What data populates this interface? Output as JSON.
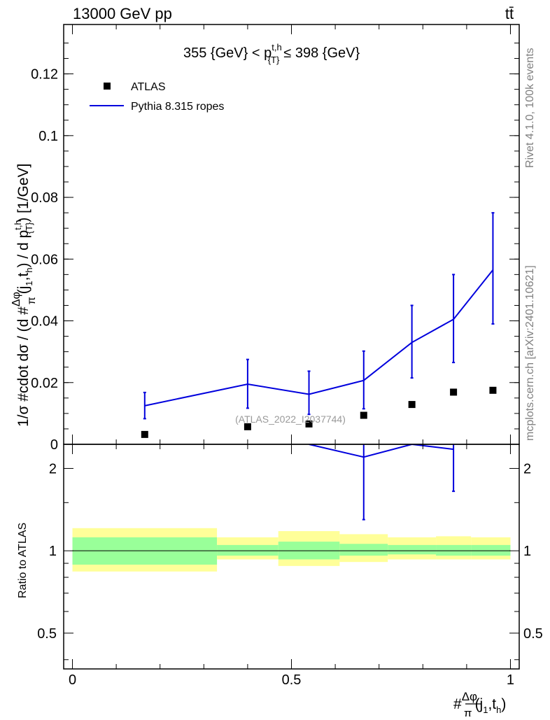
{
  "header": {
    "energy_label": "13000 GeV pp",
    "process_label": "tt̄",
    "side_label_rivet": "Rivet 4.1.0,  100k events",
    "side_label_source": "mcplots.cern.ch [arXiv:2401.10621]",
    "watermark": "(ATLAS_2022_I2037744)"
  },
  "main_plot": {
    "title_prefix": "355 {GeV} < p",
    "title_sup": "t,h",
    "title_sub": "{T}",
    "title_suffix": "≤ 398 {GeV}",
    "ylabel": "1/σ #cdot dσ / (d #Δφ/π(j₁,tₕ) / d p_{T}^{t,h}) [1/GeV]",
    "ylabel_parts": {
      "a": "1/σ #cdot dσ / (d #",
      "frac_num": "Δφ",
      "frac_den": "π",
      "b": "(j",
      "b_sub1": "1",
      "c": ",t",
      "c_sub": "h",
      "d": ") / d p",
      "d_sup": "t,h",
      "d_sub": "{T}",
      "e": ") [1/GeV]"
    },
    "yticks": [
      "0",
      "0.02",
      "0.04",
      "0.06",
      "0.08",
      "0.1",
      "0.12"
    ],
    "legend": [
      {
        "label": "ATLAS",
        "marker": "square",
        "color": "#000000"
      },
      {
        "label": "Pythia 8.315 ropes",
        "marker": "line",
        "color": "#0000dd"
      }
    ]
  },
  "ratio_plot": {
    "ylabel": "Ratio to ATLAS",
    "yticks": [
      "0.5",
      "1",
      "2"
    ]
  },
  "xaxis": {
    "label_hash": "#",
    "label_frac_num": "Δφ",
    "label_frac_den": "π",
    "label_rest_a": "(j",
    "label_sub1": "1",
    "label_rest_b": ",t",
    "label_subh": "h",
    "label_rest_c": ")",
    "ticks": [
      "0",
      "0.5",
      "1"
    ]
  },
  "colors": {
    "mc": "#0000dd",
    "data": "#000000",
    "band_inner": "#99ff99",
    "band_outer": "#ffff99"
  },
  "chart_data": {
    "type": "line",
    "xlabel": "#Δφ/π(j1,th)",
    "ylabel": "1/σ dσ/(d Δφ/π d pT) [1/GeV]",
    "xlim": [
      -0.02,
      1.02
    ],
    "ylim": [
      0,
      0.136
    ],
    "ratio_ylim": [
      0.37,
      2.45
    ],
    "data": {
      "name": "ATLAS",
      "x": [
        0.165,
        0.4,
        0.54,
        0.665,
        0.775,
        0.87,
        0.96
      ],
      "y": [
        0.0032,
        0.0057,
        0.0066,
        0.0094,
        0.0129,
        0.0169,
        0.0175
      ]
    },
    "mc": {
      "name": "Pythia 8.315 ropes",
      "x": [
        0.165,
        0.4,
        0.54,
        0.665,
        0.775,
        0.87,
        0.96
      ],
      "y": [
        0.0125,
        0.0195,
        0.0162,
        0.0207,
        0.033,
        0.0405,
        0.0565
      ],
      "yerr_low": [
        0.0042,
        0.0078,
        0.0065,
        0.0092,
        0.0115,
        0.014,
        0.0175
      ],
      "yerr_high": [
        0.0043,
        0.008,
        0.0075,
        0.0095,
        0.012,
        0.0145,
        0.0185
      ]
    },
    "ratio": {
      "mc_x": [
        0.54,
        0.665,
        0.775,
        0.87
      ],
      "mc_y": [
        2.45,
        2.2,
        2.45,
        2.35
      ],
      "mc_err_low": [
        0,
        0.9,
        0,
        0.7
      ],
      "mc_err_high": [
        0,
        0.25,
        0,
        0.1
      ]
    },
    "bands": [
      {
        "xlo": 0.0,
        "xhi": 0.33,
        "inner": [
          0.89,
          1.12
        ],
        "outer": [
          0.84,
          1.21
        ]
      },
      {
        "xlo": 0.33,
        "xhi": 0.47,
        "inner": [
          0.96,
          1.05
        ],
        "outer": [
          0.93,
          1.12
        ]
      },
      {
        "xlo": 0.47,
        "xhi": 0.61,
        "inner": [
          0.93,
          1.08
        ],
        "outer": [
          0.88,
          1.18
        ]
      },
      {
        "xlo": 0.61,
        "xhi": 0.72,
        "inner": [
          0.96,
          1.06
        ],
        "outer": [
          0.91,
          1.15
        ]
      },
      {
        "xlo": 0.72,
        "xhi": 0.83,
        "inner": [
          0.97,
          1.05
        ],
        "outer": [
          0.93,
          1.12
        ]
      },
      {
        "xlo": 0.83,
        "xhi": 0.91,
        "inner": [
          0.96,
          1.05
        ],
        "outer": [
          0.93,
          1.13
        ]
      },
      {
        "xlo": 0.91,
        "xhi": 1.0,
        "inner": [
          0.96,
          1.05
        ],
        "outer": [
          0.93,
          1.12
        ]
      }
    ]
  }
}
